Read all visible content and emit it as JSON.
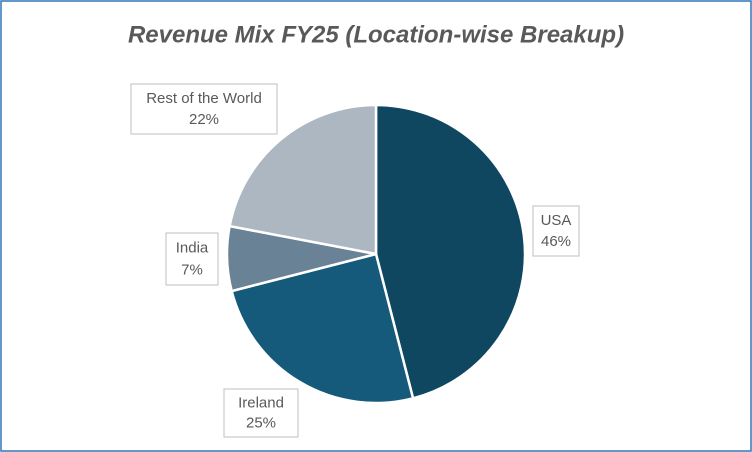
{
  "chart_data": {
    "type": "pie",
    "title": "Revenue Mix FY25 (Location-wise Breakup)",
    "categories": [
      "USA",
      "Ireland",
      "India",
      "Rest of the World"
    ],
    "values": [
      46,
      25,
      7,
      22
    ],
    "value_labels": [
      "46%",
      "25%",
      "7%",
      "22%"
    ],
    "colors": [
      "#0f4761",
      "#155a7a",
      "#6a8295",
      "#adb7c2"
    ]
  }
}
